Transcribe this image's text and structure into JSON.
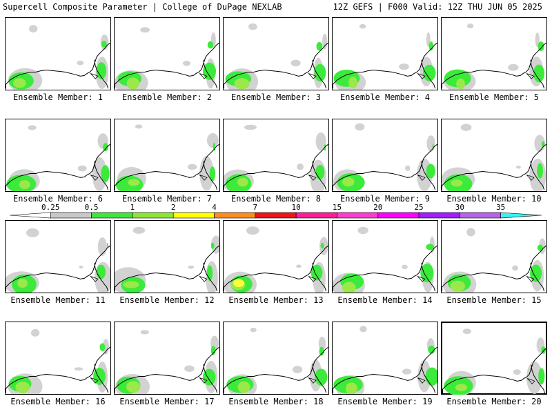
{
  "header": {
    "left": "Supercell Composite Parameter | College of DuPage NEXLAB",
    "right": "12Z GEFS | F000 Valid: 12Z THU JUN 05 2025"
  },
  "panel_label_prefix": "Ensemble Member: ",
  "members": [
    {
      "id": 1,
      "label": "Ensemble Member: 1"
    },
    {
      "id": 2,
      "label": "Ensemble Member: 2"
    },
    {
      "id": 3,
      "label": "Ensemble Member: 3"
    },
    {
      "id": 4,
      "label": "Ensemble Member: 4"
    },
    {
      "id": 5,
      "label": "Ensemble Member: 5"
    },
    {
      "id": 6,
      "label": "Ensemble Member: 6"
    },
    {
      "id": 7,
      "label": "Ensemble Member: 7"
    },
    {
      "id": 8,
      "label": "Ensemble Member: 8"
    },
    {
      "id": 9,
      "label": "Ensemble Member: 9"
    },
    {
      "id": 10,
      "label": "Ensemble Member: 10"
    },
    {
      "id": 11,
      "label": "Ensemble Member: 11"
    },
    {
      "id": 12,
      "label": "Ensemble Member: 12"
    },
    {
      "id": 13,
      "label": "Ensemble Member: 13"
    },
    {
      "id": 14,
      "label": "Ensemble Member: 14"
    },
    {
      "id": 15,
      "label": "Ensemble Member: 15"
    },
    {
      "id": 16,
      "label": "Ensemble Member: 16"
    },
    {
      "id": 17,
      "label": "Ensemble Member: 17"
    },
    {
      "id": 18,
      "label": "Ensemble Member: 18"
    },
    {
      "id": 19,
      "label": "Ensemble Member: 19"
    },
    {
      "id": 20,
      "label": "Ensemble Member: 20",
      "highlighted": true
    }
  ],
  "colorbar": {
    "ticks": [
      "0.25",
      "0.5",
      "1",
      "2",
      "4",
      "7",
      "10",
      "15",
      "20",
      "25",
      "30",
      "35"
    ],
    "colors": [
      "#ffffff",
      "#c8c8c8",
      "#3ce63c",
      "#8ce632",
      "#ffff00",
      "#ff8c1e",
      "#f01414",
      "#ff1e96",
      "#ff3cd2",
      "#ff00ff",
      "#a01eff",
      "#b464e6",
      "#3cf0f0"
    ]
  },
  "map_colors": {
    "gray": "#d2d2d2",
    "green": "#3cea3c",
    "light_green": "#9be84a",
    "yellow": "#ffff3c",
    "coast": "#000000"
  }
}
